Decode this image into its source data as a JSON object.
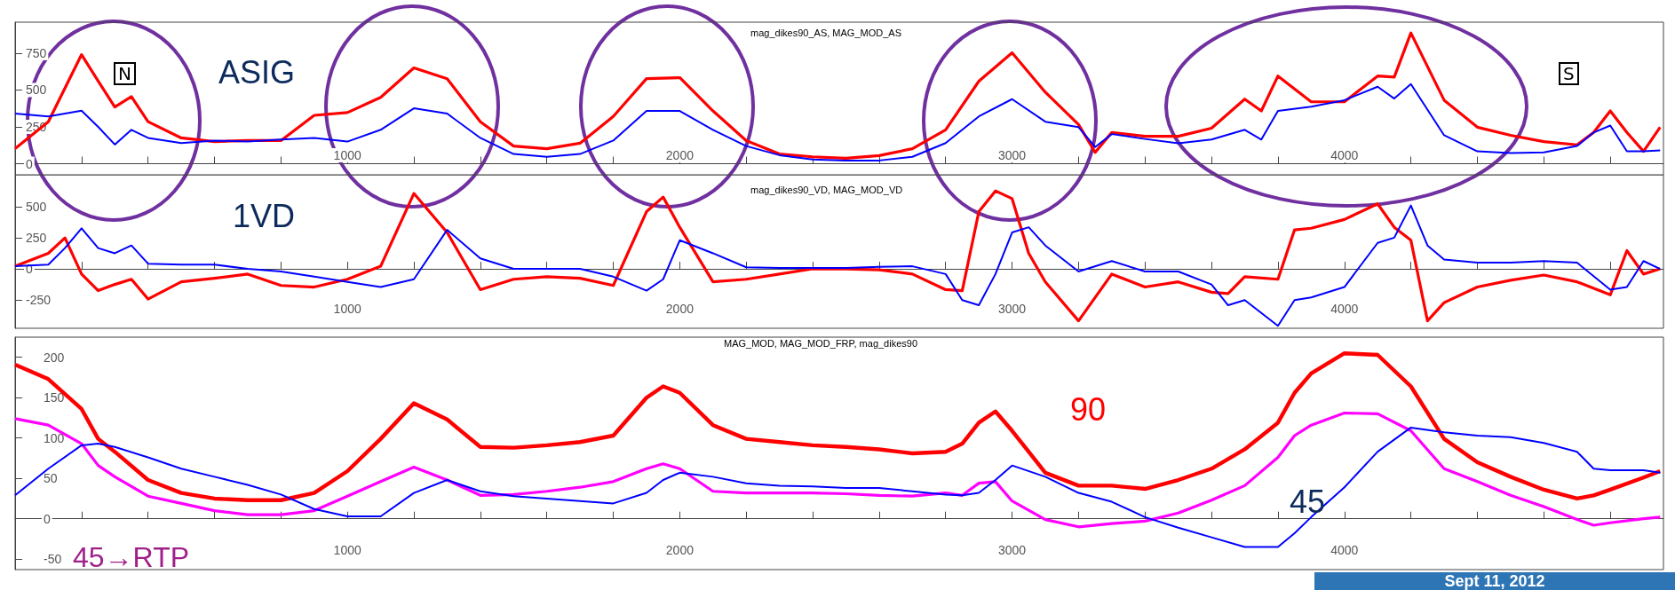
{
  "chart_data": [
    {
      "type": "line",
      "title": "mag_dikes90_AS, MAG_MOD_AS",
      "annotations": [
        "ASIG",
        "N",
        "S"
      ],
      "x": [
        0,
        100,
        200,
        250,
        300,
        350,
        400,
        500,
        600,
        700,
        800,
        900,
        1000,
        1100,
        1200,
        1300,
        1400,
        1500,
        1600,
        1700,
        1800,
        1900,
        2000,
        2100,
        2200,
        2300,
        2400,
        2500,
        2600,
        2700,
        2800,
        2900,
        3000,
        3100,
        3200,
        3250,
        3300,
        3400,
        3500,
        3600,
        3700,
        3750,
        3800,
        3900,
        4000,
        4100,
        4150,
        4200,
        4300,
        4400,
        4500,
        4600,
        4700,
        4750,
        4800,
        4850,
        4900,
        4950
      ],
      "xlim": [
        0,
        4960
      ],
      "xticks": [
        {
          "value": 200,
          "label": null
        },
        {
          "value": 400,
          "label": null
        },
        {
          "value": 600,
          "label": null
        },
        {
          "value": 800,
          "label": null
        },
        1000,
        {
          "value": 1200,
          "label": null
        },
        {
          "value": 1400,
          "label": null
        },
        {
          "value": 1600,
          "label": null
        },
        {
          "value": 1800,
          "label": null
        },
        2000,
        {
          "value": 2200,
          "label": null
        },
        {
          "value": 2400,
          "label": null
        },
        {
          "value": 2600,
          "label": null
        },
        {
          "value": 2800,
          "label": null
        },
        3000,
        {
          "value": 3200,
          "label": null
        },
        {
          "value": 3400,
          "label": null
        },
        {
          "value": 3600,
          "label": null
        },
        {
          "value": 3800,
          "label": null
        },
        4000,
        {
          "value": 4200,
          "label": null
        },
        {
          "value": 4400,
          "label": null
        },
        {
          "value": 4600,
          "label": null
        },
        {
          "value": 4800,
          "label": null
        }
      ],
      "ylim": [
        -75,
        960
      ],
      "yticks": [
        0,
        250,
        500,
        750
      ],
      "series": [
        {
          "color": "#ff0000",
          "values": [
            102,
            285,
            740,
            560,
            385,
            455,
            285,
            175,
            150,
            157,
            157,
            328,
            347,
            450,
            650,
            577,
            285,
            120,
            102,
            139,
            321,
            577,
            584,
            358,
            157,
            66,
            47,
            37,
            55,
            102,
            230,
            560,
            752,
            485,
            266,
            77,
            212,
            186,
            186,
            241,
            438,
            358,
            595,
            420,
            420,
            595,
            588,
            887,
            431,
            248,
            193,
            150,
            128,
            212,
            358,
            212,
            84,
            248
          ]
        },
        {
          "color": "#0000ff",
          "values": [
            340,
            320,
            360,
            250,
            130,
            230,
            175,
            140,
            157,
            150,
            164,
            175,
            150,
            230,
            376,
            340,
            175,
            66,
            47,
            66,
            157,
            358,
            358,
            230,
            120,
            58,
            29,
            22,
            22,
            47,
            140,
            321,
            438,
            285,
            248,
            113,
            201,
            168,
            139,
            164,
            230,
            164,
            358,
            387,
            431,
            522,
            442,
            540,
            193,
            84,
            73,
            77,
            120,
            212,
            259,
            84,
            84,
            91
          ]
        }
      ]
    },
    {
      "type": "line",
      "title": "mag_dikes90_VD, MAG_MOD_VD",
      "annotations": [
        "1VD"
      ],
      "x": [
        0,
        100,
        150,
        200,
        250,
        300,
        350,
        400,
        500,
        600,
        700,
        800,
        900,
        1000,
        1100,
        1200,
        1300,
        1400,
        1500,
        1600,
        1700,
        1800,
        1900,
        1950,
        2000,
        2100,
        2200,
        2300,
        2400,
        2500,
        2600,
        2700,
        2800,
        2850,
        2900,
        2950,
        3000,
        3050,
        3100,
        3200,
        3300,
        3400,
        3500,
        3600,
        3650,
        3700,
        3800,
        3850,
        3900,
        4000,
        4100,
        4150,
        4200,
        4250,
        4300,
        4400,
        4500,
        4600,
        4700,
        4800,
        4850,
        4900,
        4950
      ],
      "xlim": [
        0,
        4960
      ],
      "xticks": [
        {
          "value": 200,
          "label": null
        },
        {
          "value": 400,
          "label": null
        },
        {
          "value": 600,
          "label": null
        },
        {
          "value": 800,
          "label": null
        },
        1000,
        {
          "value": 1200,
          "label": null
        },
        {
          "value": 1400,
          "label": null
        },
        {
          "value": 1600,
          "label": null
        },
        {
          "value": 1800,
          "label": null
        },
        2000,
        {
          "value": 2200,
          "label": null
        },
        {
          "value": 2400,
          "label": null
        },
        {
          "value": 2600,
          "label": null
        },
        {
          "value": 2800,
          "label": null
        },
        3000,
        {
          "value": 3200,
          "label": null
        },
        {
          "value": 3400,
          "label": null
        },
        {
          "value": 3600,
          "label": null
        },
        {
          "value": 3800,
          "label": null
        },
        4000,
        {
          "value": 4200,
          "label": null
        },
        {
          "value": 4400,
          "label": null
        },
        {
          "value": 4600,
          "label": null
        },
        {
          "value": 4800,
          "label": null
        }
      ],
      "ylim": [
        -480,
        760
      ],
      "yticks": [
        -250,
        0,
        250,
        500
      ],
      "series": [
        {
          "color": "#ff0000",
          "values": [
            21,
            126,
            250,
            -42,
            -176,
            -126,
            -84,
            -244,
            -105,
            -76,
            -42,
            -134,
            -147,
            -84,
            21,
            609,
            294,
            -168,
            -84,
            -63,
            -76,
            -134,
            462,
            580,
            336,
            -105,
            -84,
            -42,
            0,
            0,
            -8,
            -42,
            -168,
            -176,
            462,
            630,
            567,
            126,
            -105,
            -420,
            -42,
            -147,
            -105,
            -189,
            -200,
            -63,
            -84,
            315,
            328,
            399,
            525,
            336,
            231,
            -420,
            -273,
            -147,
            -92,
            -50,
            -105,
            -210,
            147,
            -42,
            0
          ]
        },
        {
          "color": "#0000ff",
          "values": [
            21,
            34,
            168,
            328,
            168,
            126,
            189,
            42,
            34,
            34,
            0,
            -21,
            -63,
            -105,
            -147,
            -84,
            315,
            84,
            0,
            0,
            0,
            -63,
            -176,
            -84,
            231,
            126,
            13,
            8,
            8,
            8,
            17,
            21,
            -42,
            -252,
            -294,
            -42,
            294,
            336,
            189,
            -21,
            63,
            -21,
            -21,
            -126,
            -294,
            -252,
            -460,
            -252,
            -231,
            -147,
            210,
            252,
            512,
            189,
            76,
            50,
            50,
            63,
            50,
            -168,
            -147,
            63,
            0
          ]
        }
      ]
    },
    {
      "type": "line",
      "title": "MAG_MOD, MAG_MOD_FRP, mag_dikes90",
      "annotations": [
        "90",
        "45",
        "45→RTP",
        "Sept 11, 2012"
      ],
      "x": [
        0,
        100,
        200,
        250,
        300,
        400,
        500,
        600,
        700,
        800,
        900,
        1000,
        1100,
        1200,
        1300,
        1400,
        1500,
        1600,
        1700,
        1800,
        1900,
        1950,
        2000,
        2100,
        2200,
        2300,
        2400,
        2500,
        2600,
        2700,
        2800,
        2850,
        2900,
        2950,
        3000,
        3100,
        3200,
        3300,
        3400,
        3500,
        3600,
        3700,
        3800,
        3850,
        3900,
        4000,
        4100,
        4200,
        4300,
        4400,
        4500,
        4600,
        4700,
        4750,
        4800,
        4900,
        4950
      ],
      "xlim": [
        0,
        4960
      ],
      "xticks": [
        {
          "value": 200,
          "label": null
        },
        {
          "value": 400,
          "label": null
        },
        {
          "value": 600,
          "label": null
        },
        {
          "value": 800,
          "label": null
        },
        1000,
        {
          "value": 1200,
          "label": null
        },
        {
          "value": 1400,
          "label": null
        },
        {
          "value": 1600,
          "label": null
        },
        {
          "value": 1800,
          "label": null
        },
        2000,
        {
          "value": 2200,
          "label": null
        },
        {
          "value": 2400,
          "label": null
        },
        {
          "value": 2600,
          "label": null
        },
        {
          "value": 2800,
          "label": null
        },
        3000,
        {
          "value": 3200,
          "label": null
        },
        {
          "value": 3400,
          "label": null
        },
        {
          "value": 3600,
          "label": null
        },
        {
          "value": 3800,
          "label": null
        },
        4000,
        {
          "value": 4200,
          "label": null
        },
        {
          "value": 4400,
          "label": null
        },
        {
          "value": 4600,
          "label": null
        },
        {
          "value": 4800,
          "label": null
        }
      ],
      "ylim": [
        -63,
        225
      ],
      "yticks": [
        -50,
        0,
        50,
        100,
        150,
        200
      ],
      "series": [
        {
          "color": "#ff0000",
          "values": [
            191,
            173,
            136,
            99,
            83,
            48,
            32,
            25,
            23,
            23,
            32,
            59,
            99,
            143,
            123,
            89,
            88,
            91,
            95,
            103,
            150,
            164,
            156,
            116,
            99,
            95,
            91,
            89,
            86,
            81,
            83,
            93,
            119,
            133,
            109,
            57,
            41,
            41,
            37,
            48,
            62,
            86,
            119,
            156,
            180,
            205,
            203,
            164,
            99,
            70,
            52,
            36,
            25,
            29,
            36,
            51,
            59
          ]
        },
        {
          "color": "#ff00ff",
          "values": [
            124,
            116,
            93,
            66,
            52,
            28,
            19,
            10,
            5,
            5,
            10,
            28,
            46,
            64,
            48,
            29,
            30,
            34,
            39,
            46,
            62,
            68,
            62,
            34,
            32,
            32,
            32,
            31,
            29,
            28,
            32,
            29,
            44,
            46,
            22,
            -1,
            -10,
            -6,
            -3,
            7,
            23,
            41,
            76,
            103,
            116,
            131,
            130,
            109,
            62,
            46,
            29,
            15,
            -1,
            -8,
            -5,
            0,
            2
          ]
        },
        {
          "color": "#0000ff",
          "values": [
            29,
            62,
            91,
            93,
            89,
            76,
            62,
            52,
            42,
            30,
            12,
            3,
            3,
            32,
            48,
            34,
            28,
            25,
            22,
            19,
            32,
            48,
            57,
            52,
            44,
            41,
            40,
            38,
            38,
            34,
            30,
            29,
            32,
            48,
            66,
            52,
            32,
            21,
            2,
            -11,
            -23,
            -35,
            -35,
            -18,
            2,
            39,
            83,
            113,
            107,
            103,
            101,
            94,
            83,
            62,
            60,
            60,
            57
          ]
        }
      ]
    }
  ]
}
